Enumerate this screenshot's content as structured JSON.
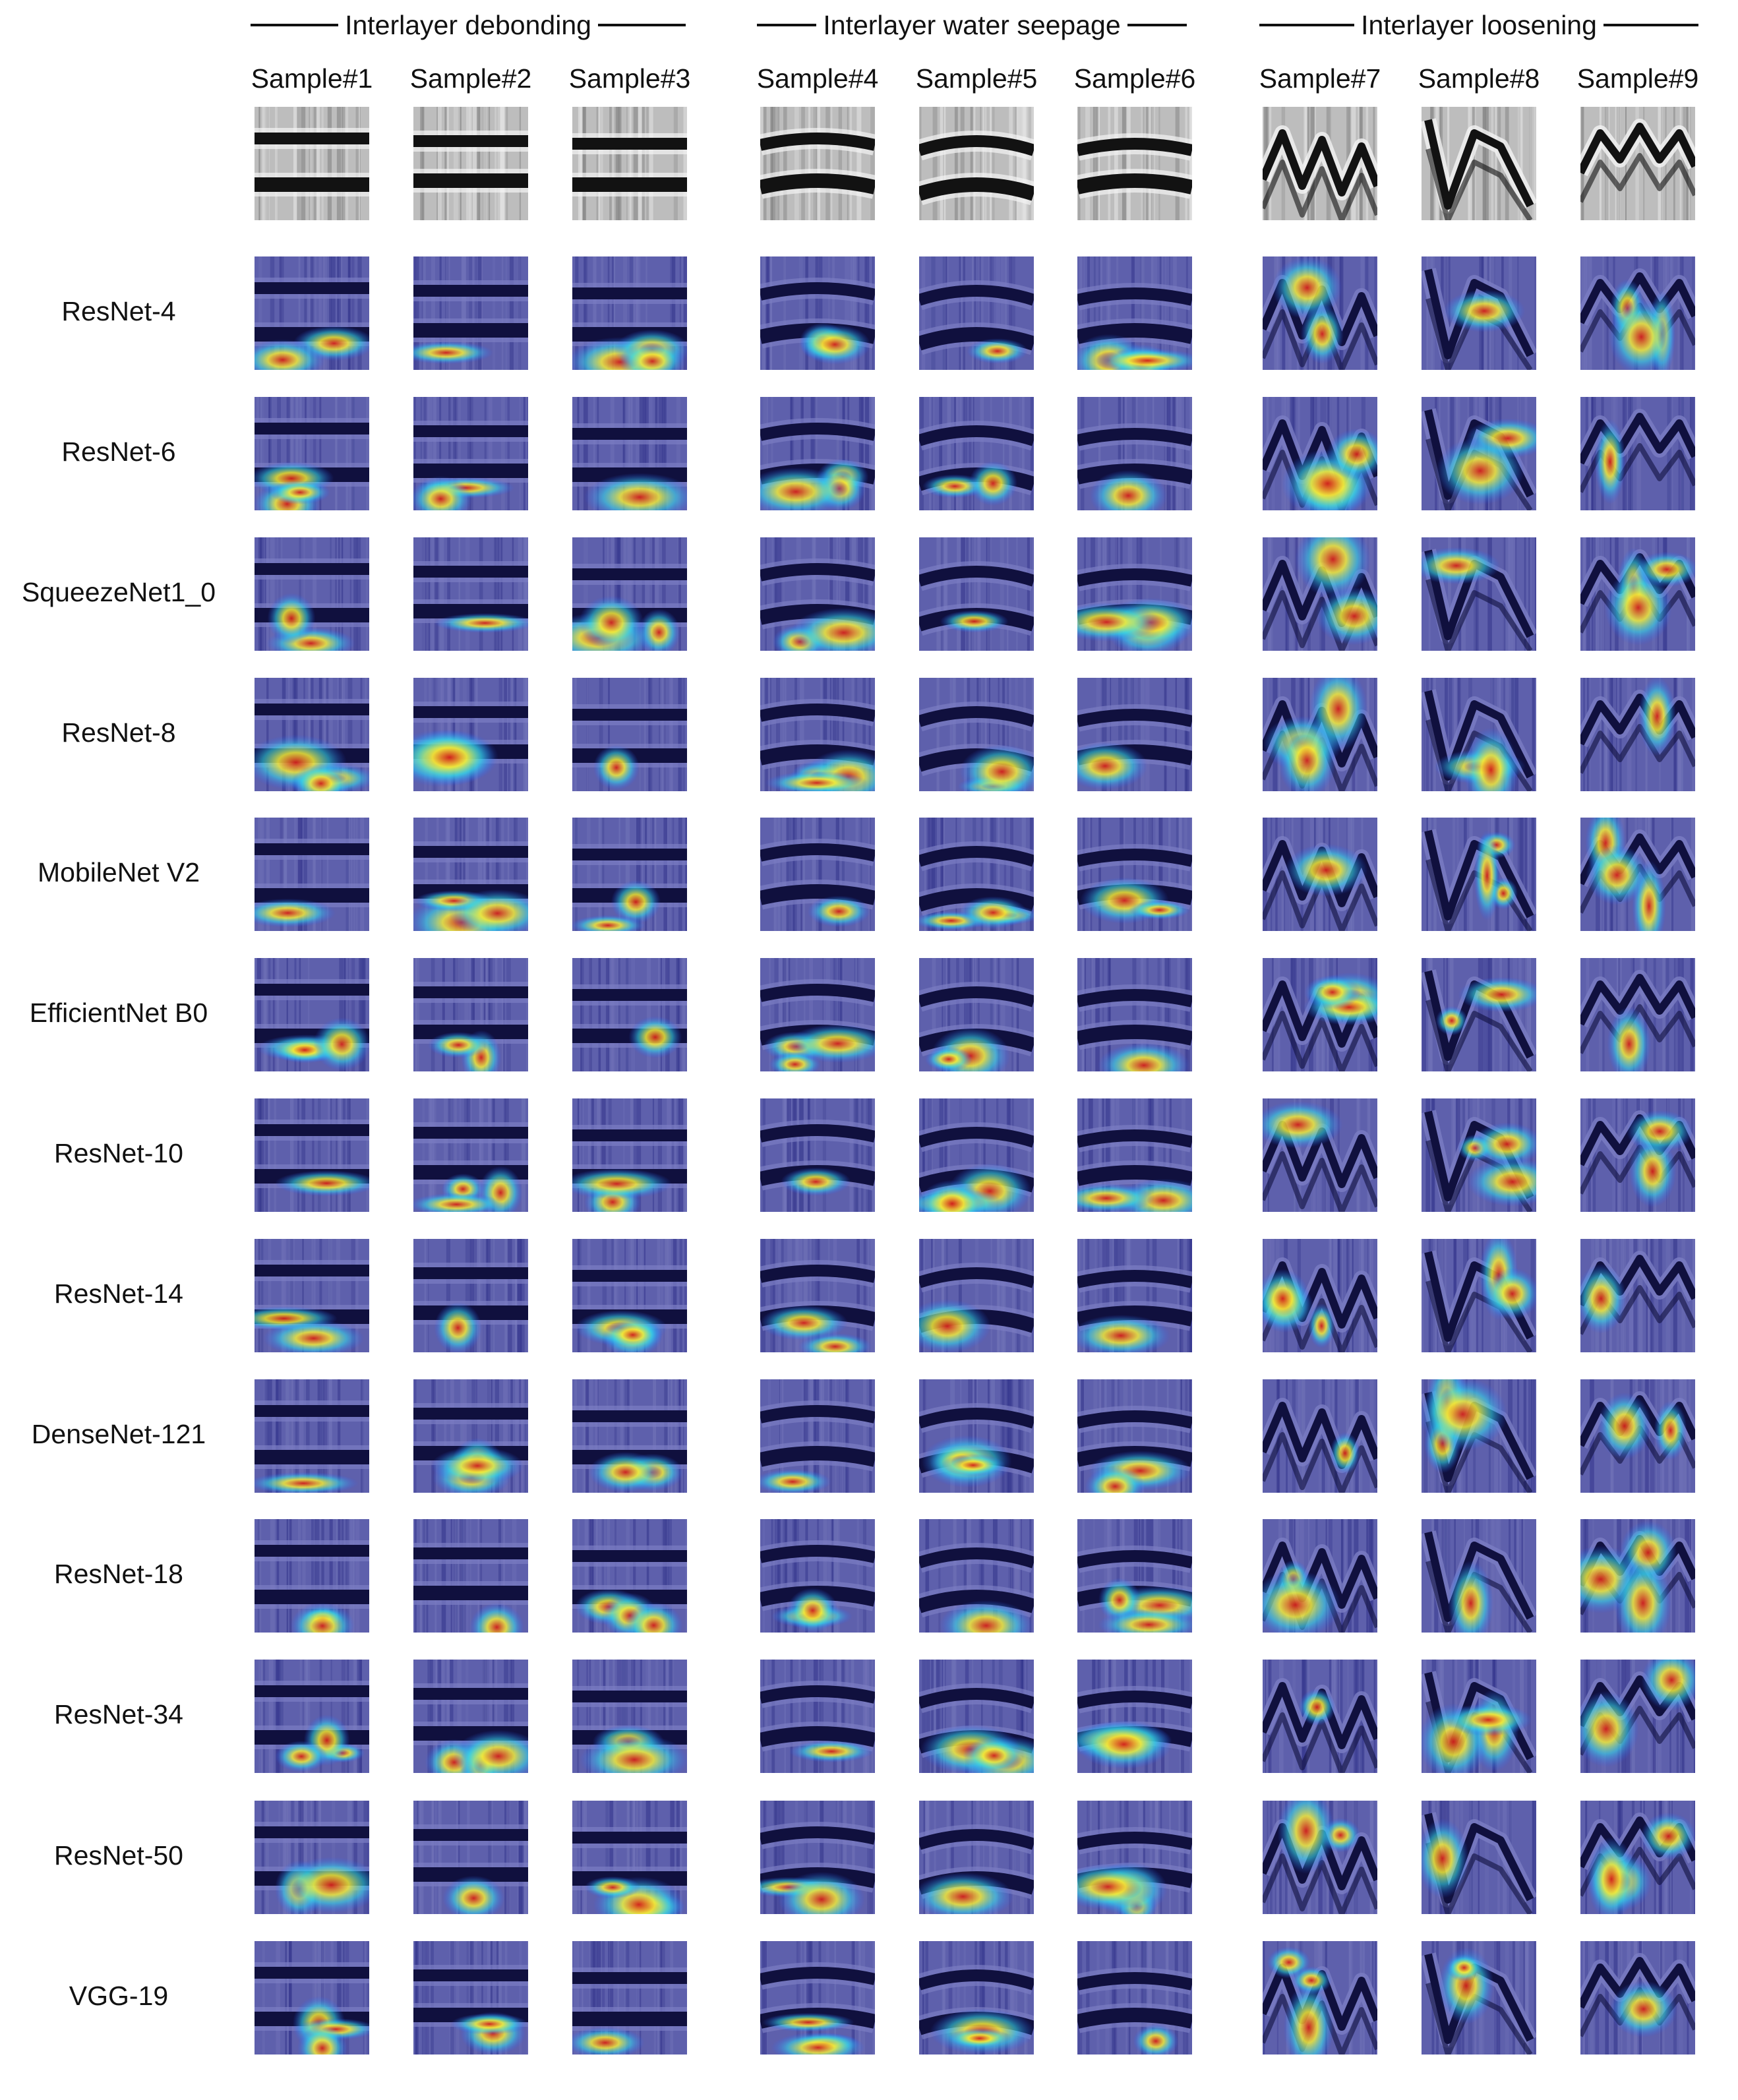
{
  "groups": [
    {
      "title": "Interlayer debonding",
      "samples": [
        1,
        2,
        3
      ]
    },
    {
      "title": "Interlayer water seepage",
      "samples": [
        4,
        5,
        6
      ]
    },
    {
      "title": "Interlayer loosening",
      "samples": [
        7,
        8,
        9
      ]
    }
  ],
  "sample_labels": [
    "Sample#1",
    "Sample#2",
    "Sample#3",
    "Sample#4",
    "Sample#5",
    "Sample#6",
    "Sample#7",
    "Sample#8",
    "Sample#9"
  ],
  "models": [
    "ResNet-4",
    "ResNet-6",
    "SqueezeNet1_0",
    "ResNet-8",
    "MobileNet V2",
    "EfficientNet B0",
    "ResNet-10",
    "ResNet-14",
    "DenseNet-121",
    "ResNet-18",
    "ResNet-34",
    "ResNet-50",
    "VGG-19"
  ],
  "colormap": {
    "base": "#24247a",
    "band_dark": "#05051e",
    "band_light": "#7d80c6",
    "cool": "#2a5cff",
    "mid": "#35d4e8",
    "warm": "#f1ea3a",
    "hot": "#d11f1c"
  }
}
